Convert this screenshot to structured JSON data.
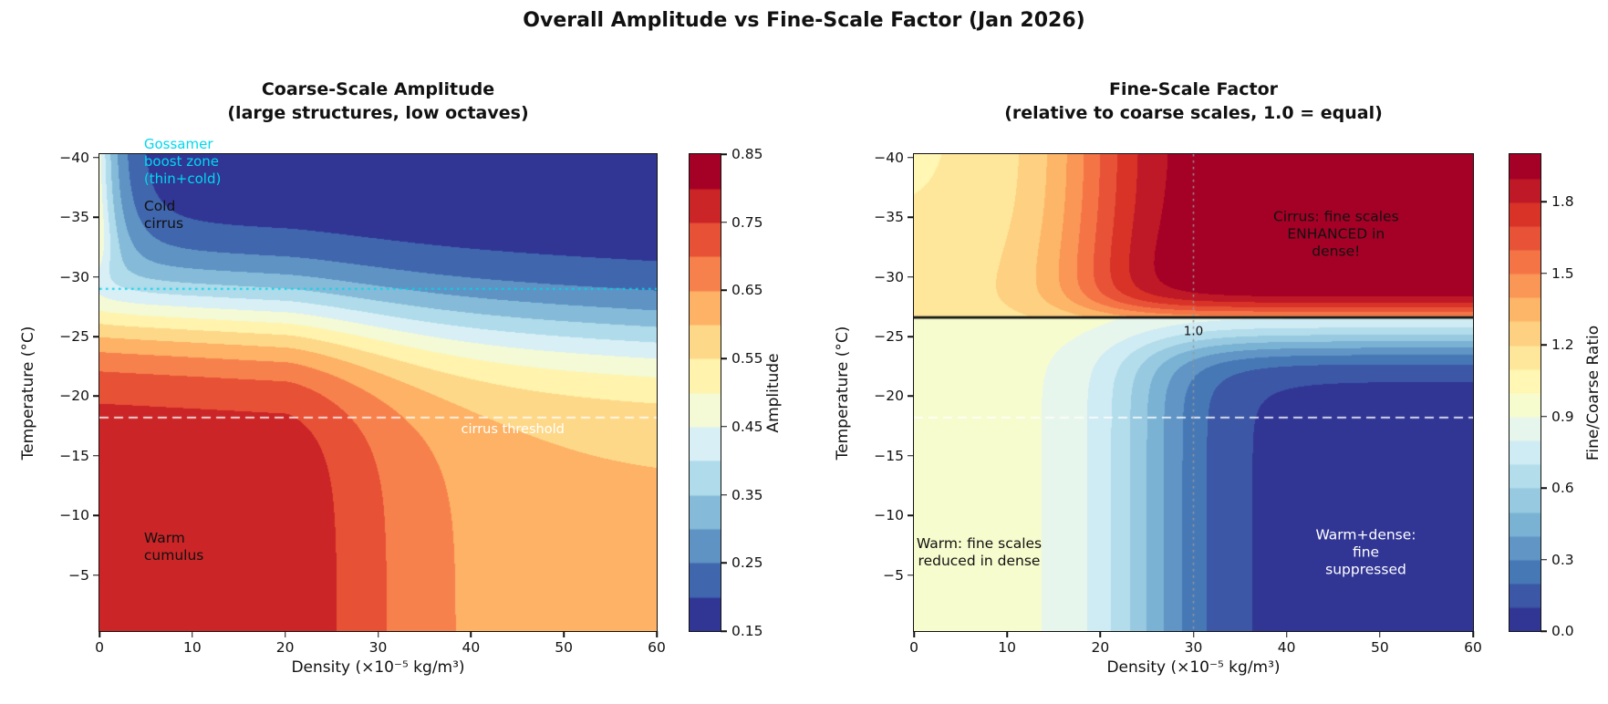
{
  "figure": {
    "suptitle": "Overall Amplitude vs Fine-Scale Factor (Jan 2026)",
    "background": "#ffffff"
  },
  "colormap_anchors": [
    "#a50026",
    "#d73027",
    "#f46d43",
    "#fdae61",
    "#fee090",
    "#ffffbf",
    "#e0f3f8",
    "#abd9e9",
    "#74add1",
    "#4575b4",
    "#313695"
  ],
  "chart_data": [
    {
      "type": "filled_contour",
      "title_line1": "Coarse-Scale Amplitude",
      "title_line2": "(large structures, low octaves)",
      "xlabel": "Density (×10⁻⁵ kg/m³)",
      "ylabel": "Temperature (°C)",
      "xlim": [
        0,
        60
      ],
      "ylim_top": -40.3,
      "ylim_bottom": -0.3,
      "xticks": [
        {
          "v": 0,
          "label": "0"
        },
        {
          "v": 10,
          "label": "10"
        },
        {
          "v": 20,
          "label": "20"
        },
        {
          "v": 30,
          "label": "30"
        },
        {
          "v": 40,
          "label": "40"
        },
        {
          "v": 50,
          "label": "50"
        },
        {
          "v": 60,
          "label": "60"
        }
      ],
      "yticks": [
        {
          "v": -40,
          "label": "−40"
        },
        {
          "v": -35,
          "label": "−35"
        },
        {
          "v": -30,
          "label": "−30"
        },
        {
          "v": -25,
          "label": "−25"
        },
        {
          "v": -20,
          "label": "−20"
        },
        {
          "v": -15,
          "label": "−15"
        },
        {
          "v": -10,
          "label": "−10"
        },
        {
          "v": -5,
          "label": "−5"
        }
      ],
      "levels": {
        "min": 0.15,
        "max": 0.85,
        "n": 14
      },
      "colorbar": {
        "label": "Amplitude",
        "ticks": [
          {
            "v": 0.85,
            "label": "0.85"
          },
          {
            "v": 0.75,
            "label": "0.75"
          },
          {
            "v": 0.65,
            "label": "0.65"
          },
          {
            "v": 0.55,
            "label": "0.55"
          },
          {
            "v": 0.45,
            "label": "0.45"
          },
          {
            "v": 0.35,
            "label": "0.35"
          },
          {
            "v": 0.25,
            "label": "0.25"
          },
          {
            "v": 0.15,
            "label": "0.15"
          }
        ]
      },
      "field": {
        "model": "amplitude",
        "base": 0.15,
        "amax": 0.79,
        "da": 0.18,
        "d0": 20,
        "dscale": 14,
        "c0": -27.5,
        "c1": 2.5,
        "tw": 3.0,
        "b": 0.31,
        "bd": 2.5,
        "bt": -31,
        "btw": 1.2
      },
      "overlays": [
        {
          "name": "gossamer-line",
          "type": "hline",
          "value": -29,
          "color": "#00d8ee",
          "dash": [
            2.5,
            4.5
          ],
          "width": 1.8
        },
        {
          "name": "cirrus-threshold-line",
          "type": "hline",
          "value": -18.2,
          "color": "rgba(255,255,255,0.9)",
          "dash": [
            10,
            6
          ],
          "width": 1.7
        }
      ],
      "annotations": [
        {
          "name": "gossamer-annotation",
          "lines": [
            "Gossamer",
            "boost zone",
            "(thin+cold)"
          ],
          "d": 4.8,
          "T": -41.8,
          "color": "#00d8ee",
          "ha": "left",
          "va": "top",
          "size": 15
        },
        {
          "name": "cold-cirrus-annotation",
          "lines": [
            "Cold",
            "cirrus"
          ],
          "d": 4.8,
          "T": -36.6,
          "color": "#111111",
          "ha": "left",
          "va": "top",
          "size": 15.5
        },
        {
          "name": "warm-cumulus-annotation",
          "lines": [
            "Warm",
            "cumulus"
          ],
          "d": 4.8,
          "T": -8.8,
          "color": "#111111",
          "ha": "left",
          "va": "top",
          "size": 15.5
        },
        {
          "name": "cirrus-threshold-label",
          "lines": [
            "cirrus threshold"
          ],
          "d": 44.5,
          "T": -17.9,
          "color": "#ffffff",
          "ha": "center",
          "va": "top",
          "size": 14.5
        }
      ],
      "sample_grid": {
        "densities": [
          0,
          10,
          20,
          30,
          40,
          50,
          60
        ],
        "temperatures": [
          -40,
          -30,
          -26,
          -20,
          -10,
          -2
        ],
        "values": [
          [
            0.46,
            0.16,
            0.15,
            0.15,
            0.15,
            0.15,
            0.15
          ],
          [
            0.44,
            0.33,
            0.31,
            0.28,
            0.26,
            0.24,
            0.22
          ],
          [
            0.55,
            0.53,
            0.51,
            0.46,
            0.41,
            0.38,
            0.34
          ],
          [
            0.74,
            0.74,
            0.73,
            0.68,
            0.62,
            0.57,
            0.53
          ],
          [
            0.79,
            0.79,
            0.78,
            0.74,
            0.68,
            0.64,
            0.6
          ],
          [
            0.79,
            0.79,
            0.79,
            0.74,
            0.69,
            0.65,
            0.61
          ]
        ]
      }
    },
    {
      "type": "filled_contour",
      "title_line1": "Fine-Scale Factor",
      "title_line2": "(relative to coarse scales, 1.0 = equal)",
      "xlabel": "Density (×10⁻⁵ kg/m³)",
      "ylabel": "Temperature (°C)",
      "xlim": [
        0,
        60
      ],
      "ylim_top": -40.3,
      "ylim_bottom": -0.3,
      "xticks": [
        {
          "v": 0,
          "label": "0"
        },
        {
          "v": 10,
          "label": "10"
        },
        {
          "v": 20,
          "label": "20"
        },
        {
          "v": 30,
          "label": "30"
        },
        {
          "v": 40,
          "label": "40"
        },
        {
          "v": 50,
          "label": "50"
        },
        {
          "v": 60,
          "label": "60"
        }
      ],
      "yticks": [
        {
          "v": -40,
          "label": "−40"
        },
        {
          "v": -35,
          "label": "−35"
        },
        {
          "v": -30,
          "label": "−30"
        },
        {
          "v": -25,
          "label": "−25"
        },
        {
          "v": -20,
          "label": "−20"
        },
        {
          "v": -15,
          "label": "−15"
        },
        {
          "v": -10,
          "label": "−10"
        },
        {
          "v": -5,
          "label": "−5"
        }
      ],
      "levels": {
        "min": 0.0,
        "max": 2.0,
        "n": 20
      },
      "colorbar": {
        "label": "Fine/Coarse Ratio",
        "ticks": [
          {
            "v": 1.8,
            "label": "1.8"
          },
          {
            "v": 1.5,
            "label": "1.5"
          },
          {
            "v": 1.2,
            "label": "1.2"
          },
          {
            "v": 0.9,
            "label": "0.9"
          },
          {
            "v": 0.6,
            "label": "0.6"
          },
          {
            "v": 0.3,
            "label": "0.3"
          },
          {
            "v": 0.0,
            "label": "0.0"
          }
        ]
      },
      "field": {
        "model": "ratio",
        "tc": -26.6,
        "b0a": 1.08,
        "b1a": 0.07,
        "baset": -33,
        "basew": 2.5,
        "k": 0.92,
        "u0": 19,
        "uw": 4,
        "v0": 0.5,
        "vw": 0.8,
        "b0b": 0.95,
        "kb": 0.9,
        "p0": 25,
        "pw": 4,
        "q0": 2.0,
        "qw": 1.2
      },
      "overlays": [
        {
          "name": "cirrus-threshold-line",
          "type": "hline",
          "value": -18.2,
          "color": "rgba(255,255,255,0.9)",
          "dash": [
            10,
            6
          ],
          "width": 1.7
        },
        {
          "name": "density-marker-line",
          "type": "vline",
          "value": 30,
          "color": "#999999",
          "dash": [
            2.5,
            4.5
          ],
          "width": 1.5
        },
        {
          "name": "equal-ratio-line",
          "type": "hline",
          "value": -26.6,
          "color": "#111111",
          "dash": [],
          "width": 2.8
        }
      ],
      "annotations": [
        {
          "name": "cirrus-enhanced-annotation",
          "lines": [
            "Cirrus: fine scales",
            "ENHANCED in dense!"
          ],
          "d": 45.3,
          "T": -33.6,
          "color": "#111111",
          "ha": "center",
          "va": "center",
          "size": 15.5
        },
        {
          "name": "ratio-one-label",
          "lines": [
            "1.0"
          ],
          "d": 30,
          "T": -25.4,
          "color": "#111111",
          "ha": "center",
          "va": "center",
          "size": 13.5
        },
        {
          "name": "warm-reduced-annotation",
          "lines": [
            "Warm: fine scales",
            "reduced in dense"
          ],
          "d": 7,
          "T": -6.9,
          "color": "#111111",
          "ha": "center",
          "va": "center",
          "size": 15.5
        },
        {
          "name": "warm-dense-annotation",
          "lines": [
            "Warm+dense:",
            "fine suppressed"
          ],
          "d": 48.5,
          "T": -6.9,
          "color": "#ffffff",
          "ha": "center",
          "va": "center",
          "size": 15.5
        }
      ],
      "sample_grid": {
        "densities": [
          0,
          10,
          20,
          30,
          40,
          50,
          60
        ],
        "temperatures": [
          -40,
          -30,
          -27,
          -26,
          -20,
          -2
        ],
        "values": [
          [
            1.08,
            1.17,
            1.6,
            1.97,
            2.0,
            2.0,
            2.0
          ],
          [
            1.13,
            1.21,
            1.64,
            1.96,
            2.0,
            2.0,
            2.0
          ],
          [
            1.15,
            1.19,
            1.39,
            1.55,
            1.58,
            1.58,
            1.58
          ],
          [
            0.95,
            0.95,
            0.89,
            0.78,
            0.74,
            0.74,
            0.74
          ],
          [
            0.95,
            0.93,
            0.71,
            0.26,
            0.09,
            0.07,
            0.07
          ],
          [
            0.95,
            0.93,
            0.7,
            0.25,
            0.07,
            0.05,
            0.05
          ]
        ]
      }
    }
  ]
}
